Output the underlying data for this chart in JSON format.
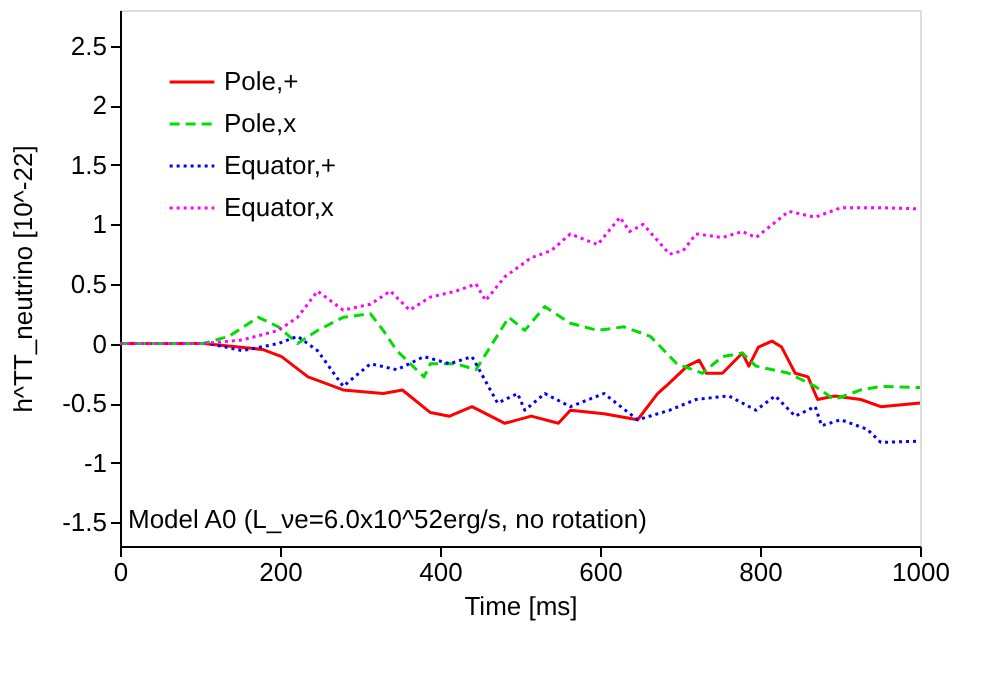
{
  "chart_data": {
    "type": "line",
    "xlabel": "Time [ms]",
    "ylabel": "h^TT_neutrino [10^-22]",
    "xlim": [
      0,
      1000
    ],
    "xticks": [
      0,
      200,
      400,
      600,
      800,
      1000
    ],
    "ylim": [
      -1.7,
      2.8
    ],
    "yticks": [
      -1.5,
      -1,
      -0.5,
      0,
      0.5,
      1,
      1.5,
      2,
      2.5
    ],
    "grid": false,
    "legend": "top left",
    "marker": "none",
    "annotations": [
      "Model A0 (L_νe=6.0x10^52erg/s, no rotation)"
    ],
    "series": [
      {
        "name": "Pole,+",
        "color": "#ff0000",
        "line_style": "solid",
        "x": [
          0,
          104,
          178,
          202,
          235,
          279,
          329,
          353,
          388,
          412,
          440,
          481,
          514,
          548,
          563,
          605,
          647,
          672,
          687,
          709,
          724,
          733,
          753,
          778,
          786,
          798,
          815,
          827,
          844,
          860,
          872,
          893,
          926,
          951,
          1000
        ],
        "values": [
          0,
          0,
          -0.05,
          -0.11,
          -0.28,
          -0.39,
          -0.42,
          -0.39,
          -0.58,
          -0.61,
          -0.53,
          -0.67,
          -0.61,
          -0.67,
          -0.56,
          -0.59,
          -0.64,
          -0.42,
          -0.33,
          -0.19,
          -0.14,
          -0.25,
          -0.25,
          -0.08,
          -0.19,
          -0.03,
          0.02,
          -0.03,
          -0.25,
          -0.28,
          -0.47,
          -0.44,
          -0.47,
          -0.53,
          -0.5
        ]
      },
      {
        "name": "Pole,x",
        "color": "#00dd00",
        "line_style": "dashed",
        "x": [
          0,
          104,
          136,
          173,
          198,
          222,
          247,
          279,
          313,
          329,
          346,
          380,
          388,
          420,
          445,
          486,
          506,
          531,
          563,
          597,
          630,
          663,
          696,
          728,
          753,
          778,
          795,
          836,
          869,
          893,
          926,
          951,
          1000
        ],
        "values": [
          0,
          0,
          0.06,
          0.22,
          0.14,
          0,
          0.11,
          0.22,
          0.25,
          0.11,
          -0.06,
          -0.28,
          -0.17,
          -0.17,
          -0.22,
          0.22,
          0.11,
          0.31,
          0.17,
          0.11,
          0.14,
          0.06,
          -0.17,
          -0.25,
          -0.11,
          -0.08,
          -0.19,
          -0.25,
          -0.36,
          -0.47,
          -0.39,
          -0.36,
          -0.37
        ]
      },
      {
        "name": "Equator,+",
        "color": "#0000ff",
        "line_style": "dotted",
        "x": [
          0,
          111,
          153,
          198,
          222,
          247,
          279,
          313,
          346,
          380,
          412,
          440,
          472,
          497,
          506,
          531,
          563,
          605,
          647,
          687,
          720,
          761,
          795,
          819,
          844,
          869,
          877,
          901,
          934,
          951,
          1000
        ],
        "values": [
          0,
          0,
          -0.06,
          0,
          0.06,
          -0.06,
          -0.36,
          -0.17,
          -0.22,
          -0.11,
          -0.17,
          -0.11,
          -0.5,
          -0.42,
          -0.56,
          -0.42,
          -0.53,
          -0.42,
          -0.64,
          -0.56,
          -0.47,
          -0.44,
          -0.56,
          -0.44,
          -0.61,
          -0.53,
          -0.69,
          -0.64,
          -0.72,
          -0.83,
          -0.82
        ]
      },
      {
        "name": "Equator,x",
        "color": "#ff00ff",
        "line_style": "dotted",
        "x": [
          0,
          104,
          153,
          198,
          222,
          247,
          279,
          313,
          338,
          362,
          388,
          420,
          445,
          457,
          481,
          514,
          539,
          563,
          597,
          625,
          637,
          654,
          687,
          704,
          720,
          753,
          778,
          795,
          836,
          869,
          901,
          951,
          1000
        ],
        "values": [
          0,
          0,
          0.03,
          0.11,
          0.22,
          0.44,
          0.28,
          0.33,
          0.44,
          0.28,
          0.39,
          0.44,
          0.5,
          0.36,
          0.56,
          0.72,
          0.78,
          0.92,
          0.83,
          1.06,
          0.94,
          1.0,
          0.75,
          0.78,
          0.92,
          0.89,
          0.94,
          0.89,
          1.11,
          1.06,
          1.14,
          1.14,
          1.13
        ]
      }
    ]
  }
}
